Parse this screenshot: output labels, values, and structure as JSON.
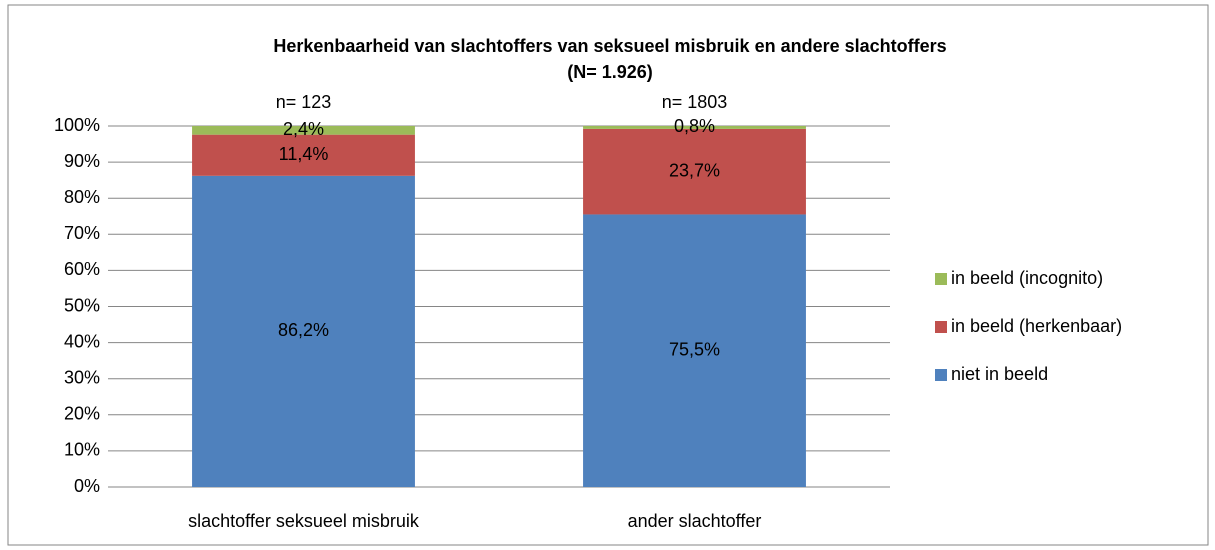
{
  "chart_data": {
    "type": "stacked_bar",
    "title": "Herkenbaarheid van slachtoffers van seksueel misbruik en andere slachtoffers",
    "subtitle": "(N= 1.926)",
    "categories": [
      "slachtoffer seksueel misbruik",
      "ander slachtoffer"
    ],
    "annotations": [
      "n= 123",
      "n= 1803"
    ],
    "series": [
      {
        "name": "niet in beeld",
        "color": "#4f81bd",
        "values": [
          86.2,
          75.5
        ],
        "value_labels": [
          "86,2%",
          "75,5%"
        ]
      },
      {
        "name": "in beeld (herkenbaar)",
        "color": "#c0504d",
        "values": [
          11.4,
          23.7
        ],
        "value_labels": [
          "11,4%",
          "23,7%"
        ]
      },
      {
        "name": "in beeld (incognito)",
        "color": "#9bbb59",
        "values": [
          2.4,
          0.8
        ],
        "value_labels": [
          "2,4%",
          "0,8%"
        ]
      }
    ],
    "ylim": [
      0,
      100
    ],
    "yticks": [
      {
        "value": 0,
        "label": "0%"
      },
      {
        "value": 10,
        "label": "10%"
      },
      {
        "value": 20,
        "label": "20%"
      },
      {
        "value": 30,
        "label": "30%"
      },
      {
        "value": 40,
        "label": "40%"
      },
      {
        "value": 50,
        "label": "50%"
      },
      {
        "value": 60,
        "label": "60%"
      },
      {
        "value": 70,
        "label": "70%"
      },
      {
        "value": 80,
        "label": "80%"
      },
      {
        "value": 90,
        "label": "90%"
      },
      {
        "value": 100,
        "label": "100%"
      }
    ],
    "grid": true,
    "legend": "right"
  }
}
